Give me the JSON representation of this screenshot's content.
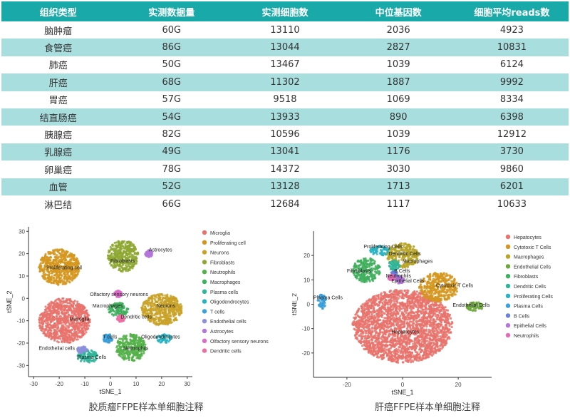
{
  "table": {
    "headers": [
      "组织类型",
      "实测数据量",
      "实测细胞数",
      "中位基因数",
      "细胞平均reads数"
    ],
    "rows": [
      [
        "脑肿瘤",
        "60G",
        "13110",
        "2036",
        "4923"
      ],
      [
        "食管癌",
        "86G",
        "13044",
        "2827",
        "10831"
      ],
      [
        "肺癌",
        "50G",
        "13467",
        "1039",
        "6124"
      ],
      [
        "肝癌",
        "68G",
        "11302",
        "1887",
        "9992"
      ],
      [
        "胃癌",
        "57G",
        "9518",
        "1069",
        "8334"
      ],
      [
        "结直肠癌",
        "54G",
        "13933",
        "890",
        "6398"
      ],
      [
        "胰腺癌",
        "82G",
        "10596",
        "1039",
        "12912"
      ],
      [
        "乳腺癌",
        "49G",
        "13041",
        "1176",
        "3730"
      ],
      [
        "卵巢癌",
        "78G",
        "14372",
        "3030",
        "9860"
      ],
      [
        "血管",
        "52G",
        "13128",
        "1713",
        "6201"
      ],
      [
        "淋巴结",
        "66G",
        "12684",
        "1117",
        "10633"
      ]
    ]
  },
  "colors": {
    "header_bg": "#1aa9a9",
    "row_alt_bg": "#a9dede"
  },
  "chart_data": [
    {
      "type": "scatter",
      "caption": "胶质瘤FFPE样本单细胞注释",
      "xlabel": "tSNE_1",
      "ylabel": "tSNE_2",
      "xlim": [
        -32,
        32
      ],
      "ylim": [
        -35,
        32
      ],
      "xticks": [
        -30,
        -20,
        -10,
        0,
        10,
        20,
        30
      ],
      "yticks": [
        -30,
        -20,
        -10,
        0,
        10,
        20,
        30
      ],
      "legend_position": "right",
      "series": [
        {
          "name": "Microglia",
          "color": "#e8736c"
        },
        {
          "name": "Proliferating cell",
          "color": "#d5961f"
        },
        {
          "name": "Neurons",
          "color": "#c9a227"
        },
        {
          "name": "Fibroblasts",
          "color": "#8ea832"
        },
        {
          "name": "Neutrophils",
          "color": "#55b14a"
        },
        {
          "name": "Macrophages",
          "color": "#3eaf5c"
        },
        {
          "name": "Plasma cells",
          "color": "#2fb59a"
        },
        {
          "name": "Oligodendrocytes",
          "color": "#29b3c2"
        },
        {
          "name": "T cells",
          "color": "#3b9fd8"
        },
        {
          "name": "Endothelial cells",
          "color": "#8b8fdc"
        },
        {
          "name": "Astrocytes",
          "color": "#b376d9"
        },
        {
          "name": "Olfactory sensory neurons",
          "color": "#d96bc9"
        },
        {
          "name": "Dendritic cells",
          "color": "#ec6fa2"
        }
      ],
      "clusters": [
        {
          "label": "Proliferating cell",
          "color": "#d5961f",
          "cx": -20,
          "cy": 14,
          "rx": 8,
          "ry": 8
        },
        {
          "label": "Microglia",
          "color": "#e8736c",
          "cx": -18,
          "cy": -10,
          "rx": 10,
          "ry": 10
        },
        {
          "label": "Neurons",
          "color": "#c9a227",
          "cx": 20,
          "cy": -5,
          "rx": 8,
          "ry": 7
        },
        {
          "label": "Fibroblasts",
          "color": "#8ea832",
          "cx": 5,
          "cy": 19,
          "rx": 6,
          "ry": 7
        },
        {
          "label": "Neutrophils",
          "color": "#55b14a",
          "cx": 8,
          "cy": -22,
          "rx": 6,
          "ry": 6
        },
        {
          "label": "Macrophages",
          "color": "#3eaf5c",
          "cx": 3,
          "cy": -5,
          "rx": 4,
          "ry": 3
        },
        {
          "label": "Plasma Cells",
          "color": "#2fb59a",
          "cx": -9,
          "cy": -26,
          "rx": 4,
          "ry": 3
        },
        {
          "label": "Oligodendrocytes",
          "color": "#29b3c2",
          "cx": 21,
          "cy": -18,
          "rx": 3,
          "ry": 2
        },
        {
          "label": "T cells",
          "color": "#3b9fd8",
          "cx": -1,
          "cy": -18,
          "rx": 2,
          "ry": 2
        },
        {
          "label": "Endothelial cells",
          "color": "#8b8fdc",
          "cx": -11,
          "cy": -23,
          "rx": 2,
          "ry": 1.5
        },
        {
          "label": "Astrocytes",
          "color": "#b376d9",
          "cx": 15,
          "cy": 20,
          "rx": 1.5,
          "ry": 1.5
        },
        {
          "label": "Olfactory sensory neurons",
          "color": "#d96bc9",
          "cx": 3,
          "cy": 2,
          "rx": 1.5,
          "ry": 1.5
        },
        {
          "label": "Dendritic cells",
          "color": "#ec6fa2",
          "cx": 4,
          "cy": -9,
          "rx": 1.5,
          "ry": 1.5
        }
      ],
      "labels": [
        {
          "text": "Proliferating cell",
          "x": -25,
          "y": 13
        },
        {
          "text": "Microglia",
          "x": -16,
          "y": -10
        },
        {
          "text": "Neurons",
          "x": 18,
          "y": -4
        },
        {
          "text": "Fibroblasts",
          "x": 0,
          "y": 16
        },
        {
          "text": "Astrocytes",
          "x": 15,
          "y": 21
        },
        {
          "text": "Olfactory sensory neurons",
          "x": -8,
          "y": 1
        },
        {
          "text": "Macrophages",
          "x": -7,
          "y": -4
        },
        {
          "text": "Dendritic cells",
          "x": 4,
          "y": -9
        },
        {
          "text": "T cells",
          "x": -3,
          "y": -18
        },
        {
          "text": "Oligodendrocytes",
          "x": 12,
          "y": -18
        },
        {
          "text": "Neutrophils",
          "x": 5,
          "y": -23
        },
        {
          "text": "Endothelial cells",
          "x": -28,
          "y": -23
        },
        {
          "text": "Plasma Cells",
          "x": -13,
          "y": -27
        }
      ]
    },
    {
      "type": "scatter",
      "caption": "肝癌FFPE样本单细胞注释",
      "xlabel": "tSNE_1",
      "ylabel": "tSNE_2",
      "xlim": [
        -32,
        32
      ],
      "ylim": [
        -30,
        30
      ],
      "xticks": [
        -20,
        0,
        20
      ],
      "yticks": [
        -20,
        -10,
        0,
        10,
        20
      ],
      "legend_position": "right",
      "series": [
        {
          "name": "Hepatocytes",
          "color": "#e8736c"
        },
        {
          "name": "Cytotoxic T Cells",
          "color": "#d5961f"
        },
        {
          "name": "Macrophages",
          "color": "#b7a528"
        },
        {
          "name": "Endothelial Cells",
          "color": "#6ca83a"
        },
        {
          "name": "Fibroblasts",
          "color": "#3eaf5c"
        },
        {
          "name": "Dendritic Cells",
          "color": "#2fb59a"
        },
        {
          "name": "Proliferating Cells",
          "color": "#29b3c2"
        },
        {
          "name": "Plasma Cells",
          "color": "#3b9fd8"
        },
        {
          "name": "B Cells",
          "color": "#6b7fdc"
        },
        {
          "name": "Epithelial Cells",
          "color": "#b376d9"
        },
        {
          "name": "Neutrophils",
          "color": "#e46bb8"
        }
      ],
      "clusters": [
        {
          "label": "Hepatocytes",
          "color": "#e8736c",
          "cx": 0,
          "cy": -9,
          "rx": 18,
          "ry": 15
        },
        {
          "label": "Cytotoxic T Cells",
          "color": "#d5961f",
          "cx": 13,
          "cy": 7,
          "rx": 7,
          "ry": 6
        },
        {
          "label": "Macrophages",
          "color": "#b7a528",
          "cx": 0,
          "cy": 20,
          "rx": 6,
          "ry": 5
        },
        {
          "label": "Endothelial Cells",
          "color": "#6ca83a",
          "cx": 26,
          "cy": -1,
          "rx": 3,
          "ry": 2
        },
        {
          "label": "Fibroblasts",
          "color": "#3eaf5c",
          "cx": -13,
          "cy": 14,
          "rx": 5,
          "ry": 5
        },
        {
          "label": "Dendritic Cells",
          "color": "#2fb59a",
          "cx": -3,
          "cy": 16,
          "rx": 2,
          "ry": 2
        },
        {
          "label": "Proliferating Cells",
          "color": "#29b3c2",
          "cx": -8,
          "cy": 22,
          "rx": 4,
          "ry": 2
        },
        {
          "label": "Plasma Cells",
          "color": "#3b9fd8",
          "cx": -29,
          "cy": 1,
          "rx": 1.5,
          "ry": 3
        },
        {
          "label": "B Cells",
          "color": "#6b7fdc",
          "cx": -3,
          "cy": 12,
          "rx": 1.5,
          "ry": 1.5
        },
        {
          "label": "Epithelial Cells",
          "color": "#b376d9",
          "cx": -1,
          "cy": 10,
          "rx": 1.5,
          "ry": 1.5
        },
        {
          "label": "Neutrophils",
          "color": "#e46bb8",
          "cx": -4,
          "cy": 11,
          "rx": 1.2,
          "ry": 1.2
        }
      ],
      "labels": [
        {
          "text": "Proliferating Cells",
          "x": -14,
          "y": 23
        },
        {
          "text": "Dendritic Cells",
          "x": -5,
          "y": 20
        },
        {
          "text": "Macrophages",
          "x": 0,
          "y": 17
        },
        {
          "text": "Fibroblasts",
          "x": -20,
          "y": 13
        },
        {
          "text": "B Cells",
          "x": -3,
          "y": 13
        },
        {
          "text": "Neutrophils",
          "x": -6,
          "y": 11
        },
        {
          "text": "Epithelial Cells",
          "x": -4,
          "y": 9
        },
        {
          "text": "Cytotoxic T Cells",
          "x": 12,
          "y": 7
        },
        {
          "text": "Plasma Cells",
          "x": -32,
          "y": 2
        },
        {
          "text": "Endothelial Cells",
          "x": 18,
          "y": -1
        },
        {
          "text": "Hepatocytes",
          "x": -4,
          "y": -12
        }
      ]
    }
  ]
}
